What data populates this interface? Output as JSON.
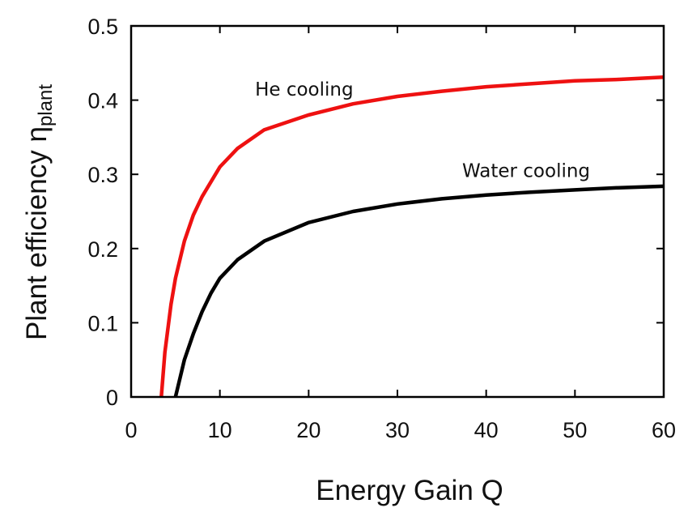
{
  "chart_data": {
    "type": "line",
    "xlabel": "Energy Gain Q",
    "ylabel": "Plant efficiency",
    "ylabel_symbol": "η",
    "ylabel_subscript": "plant",
    "xlim": [
      0,
      60
    ],
    "ylim": [
      0,
      0.5
    ],
    "xticks": [
      "0",
      "10",
      "20",
      "30",
      "40",
      "50",
      "60"
    ],
    "yticks": [
      "0",
      "0.1",
      "0.2",
      "0.3",
      "0.4",
      "0.5"
    ],
    "grid": false,
    "legend": "none",
    "series": [
      {
        "name": "He cooling",
        "color": "#ee1111",
        "x": [
          3.4,
          3.8,
          4.5,
          5.0,
          6.0,
          7.0,
          8.0,
          10.0,
          12.0,
          15.0,
          20.0,
          25.0,
          30.0,
          35.0,
          40.0,
          45.0,
          50.0,
          55.0,
          60.0
        ],
        "y": [
          0.0,
          0.06,
          0.125,
          0.16,
          0.21,
          0.245,
          0.27,
          0.31,
          0.335,
          0.36,
          0.38,
          0.395,
          0.405,
          0.412,
          0.418,
          0.422,
          0.426,
          0.428,
          0.431
        ]
      },
      {
        "name": "Water cooling",
        "color": "#000000",
        "x": [
          5.0,
          5.5,
          6.0,
          7.0,
          8.0,
          9.0,
          10.0,
          12.0,
          15.0,
          20.0,
          25.0,
          30.0,
          35.0,
          40.0,
          45.0,
          50.0,
          55.0,
          60.0
        ],
        "y": [
          0.0,
          0.025,
          0.05,
          0.085,
          0.115,
          0.14,
          0.16,
          0.185,
          0.21,
          0.235,
          0.25,
          0.26,
          0.267,
          0.272,
          0.276,
          0.279,
          0.282,
          0.284
        ]
      }
    ],
    "annotations": [
      {
        "text": "He cooling",
        "x": 19.5,
        "y": 0.415
      },
      {
        "text": "Water cooling",
        "x": 44.5,
        "y": 0.305
      }
    ]
  }
}
